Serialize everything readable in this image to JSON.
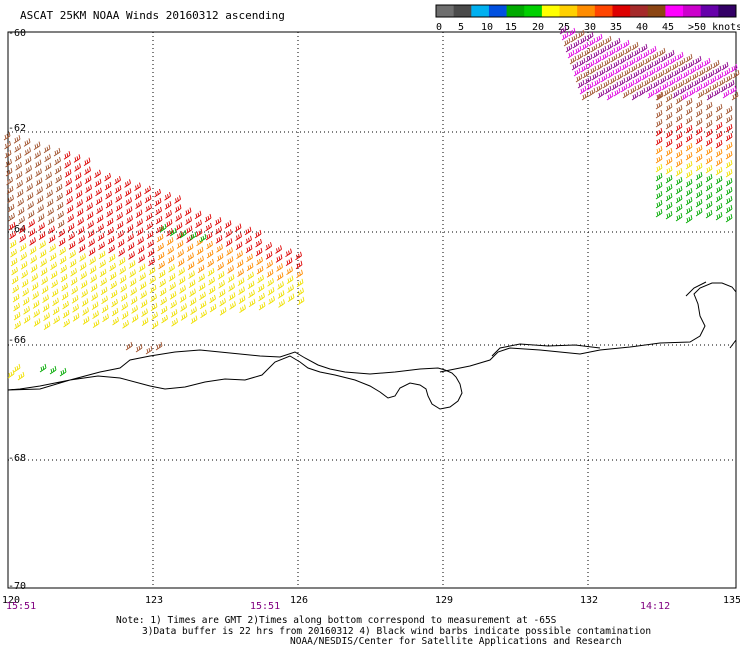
{
  "title": "ASCAT 25KM NOAA Winds 20160312 ascending",
  "legend": {
    "colors": [
      "#6e6e6e",
      "#4a4a4a",
      "#00b0f0",
      "#0050e0",
      "#00aa00",
      "#00d000",
      "#ffff00",
      "#ffd000",
      "#ff8c00",
      "#ff4500",
      "#dd0000",
      "#a52a2a",
      "#8b4513",
      "#ff00ff",
      "#cc00cc",
      "#6600aa",
      "#330066"
    ],
    "labels": [
      "0",
      "5",
      "10",
      "15",
      "20",
      "25",
      "30",
      "35",
      "40",
      "45",
      ">50 knots"
    ]
  },
  "axes": {
    "lat_labels": [
      "-60",
      "-62",
      "-64",
      "-66",
      "-68",
      "-70"
    ],
    "lon_labels": [
      "120",
      "123",
      "126",
      "129",
      "132",
      "135"
    ]
  },
  "times": [
    "15:51",
    "15:51",
    "14:12"
  ],
  "notes": [
    "Note: 1) Times are GMT 2)Times along bottom correspond to measurement at -65S",
    "3)Data buffer is 22 hrs from 20160312 4) Black wind barbs indicate possible contamination",
    "NOAA/NESDIS/Center for Satellite Applications and Research"
  ],
  "colors": {
    "grid": "#000000",
    "coast": "#000000",
    "time_text": "#800080"
  },
  "barbs": {
    "west_swath": [
      "brown",
      "red",
      "orange",
      "yellow",
      "green"
    ],
    "east_swath": [
      "purple",
      "magenta",
      "brown",
      "red",
      "orange",
      "yellow",
      "green"
    ]
  }
}
